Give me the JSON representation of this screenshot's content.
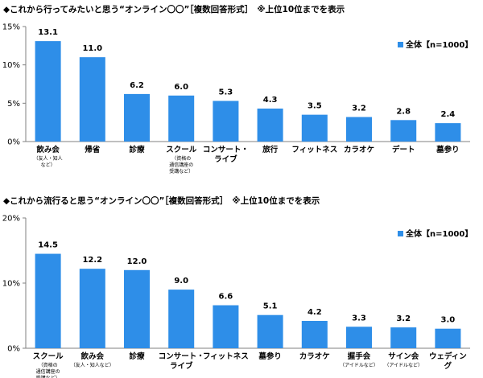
{
  "chart_data": [
    {
      "type": "bar",
      "title": "◆これから行ってみたいと思う“オンライン〇〇”［複数回答形式］　※上位10位までを表示",
      "legend": "全体【n=1000】",
      "legend_position": "top-right",
      "categories": [
        {
          "label": [
            "飲み会"
          ],
          "sub": [
            "（友人・知人",
            "など）"
          ]
        },
        {
          "label": [
            "帰省"
          ],
          "sub": []
        },
        {
          "label": [
            "診療"
          ],
          "sub": []
        },
        {
          "label": [
            "スクール"
          ],
          "sub": [
            "（資格の",
            "通信講座の",
            "受講など）"
          ]
        },
        {
          "label": [
            "コンサート・",
            "ライブ"
          ],
          "sub": []
        },
        {
          "label": [
            "旅行"
          ],
          "sub": []
        },
        {
          "label": [
            "フィットネス"
          ],
          "sub": []
        },
        {
          "label": [
            "カラオケ"
          ],
          "sub": []
        },
        {
          "label": [
            "デート"
          ],
          "sub": []
        },
        {
          "label": [
            "墓参り"
          ],
          "sub": []
        }
      ],
      "values": [
        13.1,
        11.0,
        6.2,
        6.0,
        5.3,
        4.3,
        3.5,
        3.2,
        2.8,
        2.4
      ],
      "value_labels": [
        "13.1",
        "11.0",
        "6.2",
        "6.0",
        "5.3",
        "4.3",
        "3.5",
        "3.2",
        "2.8",
        "2.4"
      ],
      "ylim": [
        0,
        15
      ],
      "yticks": [
        0,
        5,
        10,
        15
      ],
      "ytick_labels": [
        "0%",
        "5%",
        "10%",
        "15%"
      ],
      "grid": false,
      "bar_color": "#2e8ee8"
    },
    {
      "type": "bar",
      "title": "◆これから流行ると思う“オンライン〇〇”［複数回答形式］　※上位10位までを表示",
      "legend": "全体【n=1000】",
      "legend_position": "top-right",
      "categories": [
        {
          "label": [
            "スクール"
          ],
          "sub": [
            "（資格の",
            "通信講座の",
            "受講など）"
          ]
        },
        {
          "label": [
            "飲み会"
          ],
          "sub": [
            "（友人・知人など）"
          ]
        },
        {
          "label": [
            "診療"
          ],
          "sub": []
        },
        {
          "label": [
            "コンサート・",
            "ライブ"
          ],
          "sub": []
        },
        {
          "label": [
            "フィットネス"
          ],
          "sub": []
        },
        {
          "label": [
            "墓参り"
          ],
          "sub": []
        },
        {
          "label": [
            "カラオケ"
          ],
          "sub": []
        },
        {
          "label": [
            "握手会"
          ],
          "sub": [
            "（アイドルなど）"
          ]
        },
        {
          "label": [
            "サイン会"
          ],
          "sub": [
            "（アイドルなど）"
          ]
        },
        {
          "label": [
            "ウェディン",
            "グ"
          ],
          "sub": []
        }
      ],
      "values": [
        14.5,
        12.2,
        12.0,
        9.0,
        6.6,
        5.1,
        4.2,
        3.3,
        3.2,
        3.0
      ],
      "value_labels": [
        "14.5",
        "12.2",
        "12.0",
        "9.0",
        "6.6",
        "5.1",
        "4.2",
        "3.3",
        "3.2",
        "3.0"
      ],
      "ylim": [
        0,
        20
      ],
      "yticks": [
        0,
        10,
        20
      ],
      "ytick_labels": [
        "0%",
        "10%",
        "20%"
      ],
      "grid": false,
      "bar_color": "#2e8ee8"
    }
  ]
}
